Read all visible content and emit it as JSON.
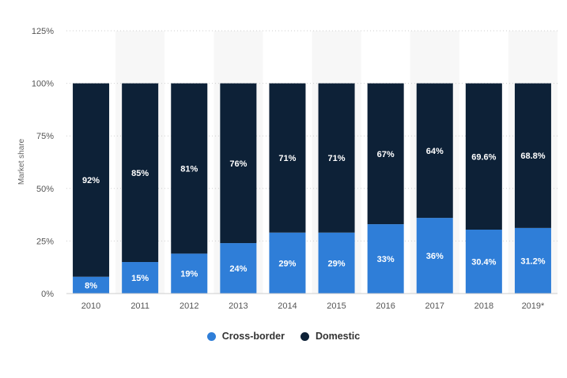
{
  "chart_data": {
    "type": "bar",
    "stacked": true,
    "ylabel": "Market share",
    "ylim": [
      0,
      125
    ],
    "y_ticks": [
      "0%",
      "25%",
      "50%",
      "75%",
      "100%",
      "125%"
    ],
    "y_tick_values": [
      0,
      25,
      50,
      75,
      100,
      125
    ],
    "grid": true,
    "legend_position": "bottom-center",
    "categories": [
      "2010",
      "2011",
      "2012",
      "2013",
      "2014",
      "2015",
      "2016",
      "2017",
      "2018",
      "2019*"
    ],
    "series": [
      {
        "name": "Cross-border",
        "color": "#2f7ed8",
        "values": [
          8,
          15,
          19,
          24,
          29,
          29,
          33,
          36,
          30.4,
          31.2
        ],
        "labels": [
          "8%",
          "15%",
          "19%",
          "24%",
          "29%",
          "29%",
          "33%",
          "36%",
          "30.4%",
          "31.2%"
        ]
      },
      {
        "name": "Domestic",
        "color": "#0d2137",
        "values": [
          92,
          85,
          81,
          76,
          71,
          71,
          67,
          64,
          69.6,
          68.8
        ],
        "labels": [
          "92%",
          "85%",
          "81%",
          "76%",
          "71%",
          "71%",
          "67%",
          "64%",
          "69.6%",
          "68.8%"
        ]
      }
    ]
  }
}
